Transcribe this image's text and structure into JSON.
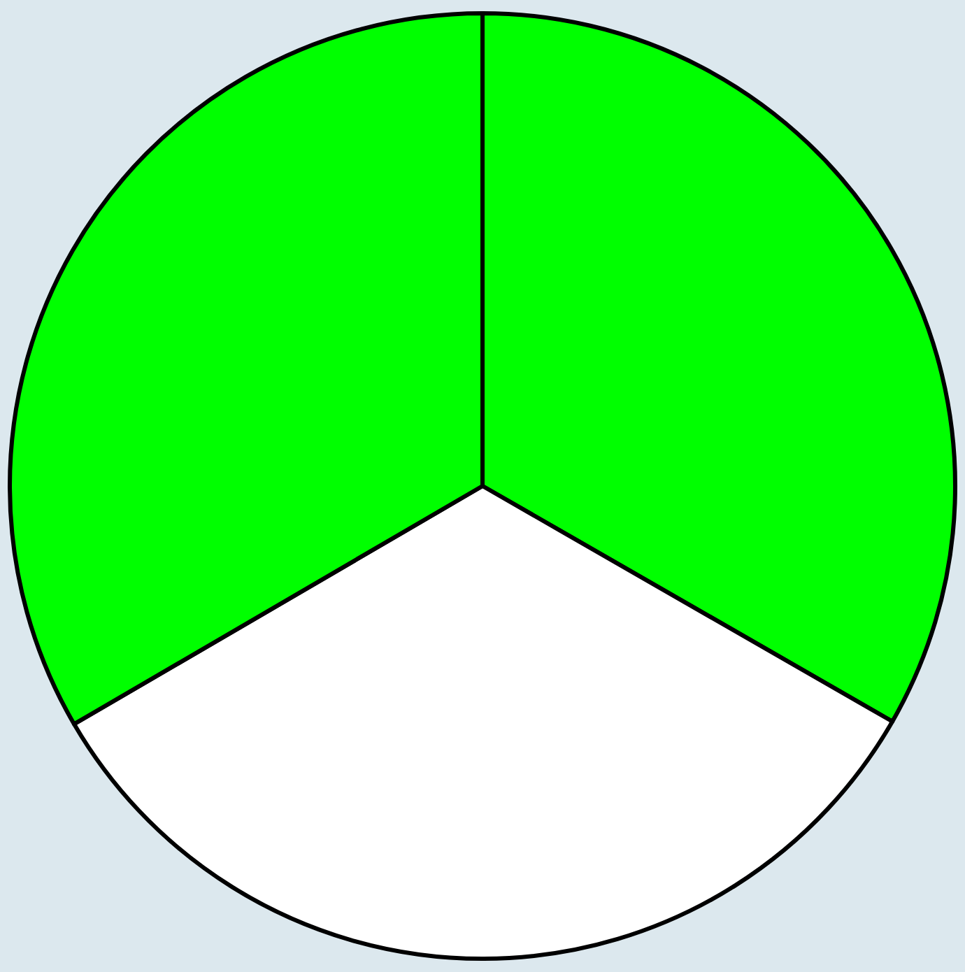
{
  "chart_data": {
    "type": "pie",
    "categories": [
      null,
      null,
      null
    ],
    "values": [
      33.3,
      33.3,
      33.4
    ],
    "colors": [
      "#00ff00",
      "#ffffff",
      "#00ff00"
    ]
  }
}
